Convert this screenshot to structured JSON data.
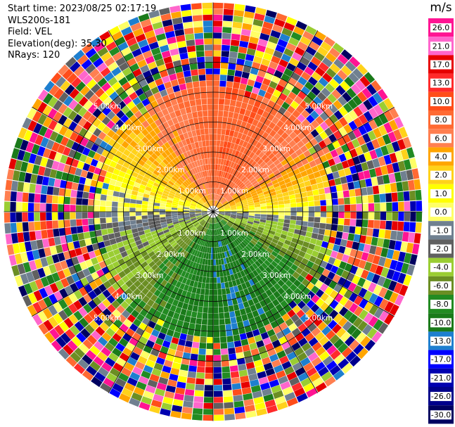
{
  "header": {
    "start_time": "Start time: 2023/08/25 02:17:19",
    "instrument": "WLS200s-181",
    "field": "Field: VEL",
    "elevation": "Elevation(deg): 35.30",
    "nrays": "NRays: 120"
  },
  "chart_data": {
    "type": "heatmap",
    "subtype": "polar-ppi",
    "field": "VEL",
    "units": "m/s",
    "range_rings_km": [
      1.0,
      2.0,
      3.0,
      4.0,
      5.0
    ],
    "ring_labels": [
      "1.00km",
      "2.00km",
      "3.00km",
      "4.00km",
      "5.00km"
    ],
    "spokes_deg": [
      0,
      30,
      60,
      90,
      120,
      150,
      180,
      210,
      240,
      270,
      300,
      330
    ],
    "max_range_km": 7.0,
    "nrays": 120,
    "colorbar": {
      "title": "m/s",
      "tick_labels": [
        "26.0",
        "21.0",
        "17.0",
        "13.0",
        "10.0",
        "8.0",
        "6.0",
        "4.0",
        "2.0",
        "1.0",
        "0.0",
        "-1.0",
        "-2.0",
        "-4.0",
        "-6.0",
        "-8.0",
        "-10.0",
        "-13.0",
        "-17.0",
        "-21.0",
        "-26.0",
        "-30.0"
      ],
      "colors": [
        "#ff1493",
        "#ff66cc",
        "#e60000",
        "#ff2a2a",
        "#ff4d1a",
        "#ff6a33",
        "#ff7f50",
        "#ffa500",
        "#ffd21a",
        "#ffff00",
        "#ffff66",
        "#708090",
        "#606060",
        "#9acd32",
        "#6b8e23",
        "#228b22",
        "#1a7a1a",
        "#1e7fcf",
        "#0000ff",
        "#0000b0",
        "#00008b",
        "#000060"
      ]
    },
    "pattern": {
      "north": "6.0 to 10.0 m/s",
      "east_west": "0.0 m/s",
      "south": "-6.0 to -10.0 m/s",
      "outer": "noise"
    }
  }
}
